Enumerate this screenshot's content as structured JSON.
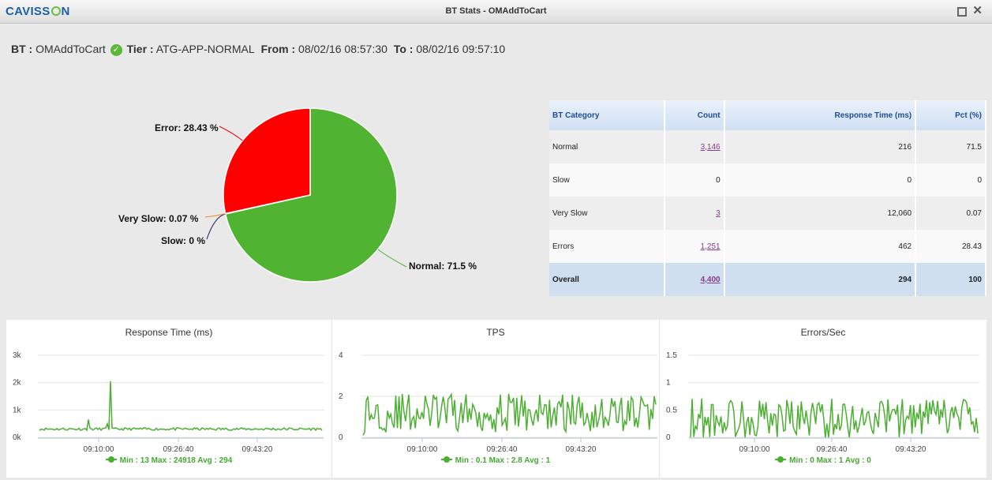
{
  "window": {
    "logo_left": "CAVISS",
    "logo_right": "N",
    "title": "BT Stats - OMAddToCart",
    "maximize_icon": "square-icon",
    "close_icon": "x-icon",
    "close_glyph": "✕"
  },
  "info": {
    "bt_label": "BT :",
    "bt_value": "OMAddToCart",
    "status_icon": "check-circle-icon",
    "status_glyph": "✓",
    "tier_label": "Tier :",
    "tier_value": "ATG-APP-NORMAL",
    "from_label": "From :",
    "from_value": "08/02/16 08:57:30",
    "to_label": "To :",
    "to_value": "08/02/16 09:57:10"
  },
  "pie": {
    "slices": [
      {
        "name": "Normal",
        "value": 71.5,
        "label": "Normal: 71.5 %",
        "color": "#50b432"
      },
      {
        "name": "Slow",
        "value": 0,
        "label": "Slow: 0 %",
        "color": "#24135c"
      },
      {
        "name": "Very Slow",
        "value": 0.07,
        "label": "Very Slow: 0.07 %",
        "color": "#ed8a2a"
      },
      {
        "name": "Error",
        "value": 28.43,
        "label": "Error: 28.43 %",
        "color": "#ff0000"
      }
    ]
  },
  "table": {
    "headers": [
      "BT Category",
      "Count",
      "Response Time (ms)",
      "Pct (%)"
    ],
    "rows": [
      {
        "category": "Normal",
        "count": "3,146",
        "response": "216",
        "pct": "71.5"
      },
      {
        "category": "Slow",
        "count": "0",
        "response": "0",
        "pct": "0"
      },
      {
        "category": "Very Slow",
        "count": "3",
        "response": "12,060",
        "pct": "0.07"
      },
      {
        "category": "Errors",
        "count": "1,251",
        "response": "462",
        "pct": "28.43"
      },
      {
        "category": "Overall",
        "count": "4,400",
        "response": "294",
        "pct": "100"
      }
    ]
  },
  "charts": {
    "response_time": {
      "title": "Response Time (ms)",
      "y_ticks": [
        "3k",
        "2k",
        "1k",
        "0k"
      ],
      "x_ticks": [
        "09:10:00",
        "09:26:40",
        "09:43:20"
      ],
      "legend": "Min : 13 Max : 24918 Avg : 294",
      "color": "#4caf32"
    },
    "tps": {
      "title": "TPS",
      "y_ticks": [
        "4",
        "2",
        "0"
      ],
      "x_ticks": [
        "09:10:00",
        "09:26:40",
        "09:43:20"
      ],
      "legend": "Min : 0.1 Max : 2.8 Avg : 1",
      "color": "#4caf32"
    },
    "errors": {
      "title": "Errors/Sec",
      "y_ticks": [
        "1.5",
        "1",
        "0.5",
        "0"
      ],
      "x_ticks": [
        "09:10:00",
        "09:26:40",
        "09:43:20"
      ],
      "legend": "Min : 0 Max : 1 Avg : 0",
      "color": "#4caf32"
    }
  }
}
